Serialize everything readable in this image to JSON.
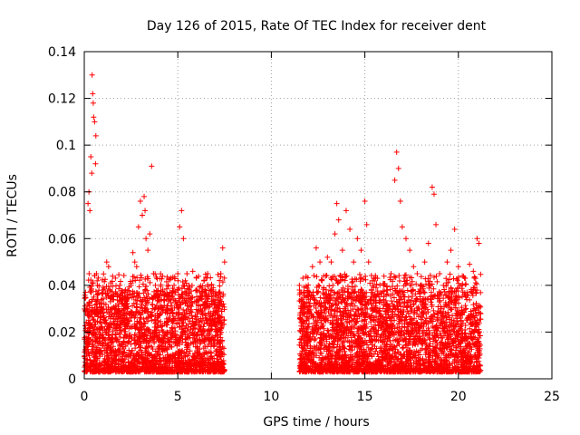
{
  "chart_data": {
    "type": "scatter",
    "title": "Day 126 of 2015, Rate Of TEC Index for receiver dent",
    "xlabel": "GPS time / hours",
    "ylabel": "ROTI / TECUs",
    "xlim": [
      0,
      25
    ],
    "ylim": [
      0,
      0.14
    ],
    "x_ticks": [
      0,
      5,
      10,
      15,
      20,
      25
    ],
    "x_tick_labels": [
      "0",
      "5",
      "10",
      "15",
      "20",
      "25"
    ],
    "y_ticks": [
      0,
      0.02,
      0.04,
      0.06,
      0.08,
      0.1,
      0.12,
      0.14
    ],
    "y_tick_labels": [
      "0",
      "0.02",
      "0.04",
      "0.06",
      "0.08",
      "0.1",
      "0.12",
      "0.14"
    ],
    "grid": true,
    "legend": "none",
    "marker": "plus",
    "color": "#ff0000",
    "series": [
      {
        "name": "",
        "points": [
          [
            0.05,
            0.012
          ],
          [
            0.1,
            0.018
          ],
          [
            0.15,
            0.008
          ],
          [
            0.2,
            0.075
          ],
          [
            0.25,
            0.08
          ],
          [
            0.3,
            0.072
          ],
          [
            0.35,
            0.095
          ],
          [
            0.4,
            0.088
          ],
          [
            0.42,
            0.13
          ],
          [
            0.45,
            0.122
          ],
          [
            0.48,
            0.118
          ],
          [
            0.5,
            0.112
          ],
          [
            0.55,
            0.11
          ],
          [
            0.6,
            0.092
          ],
          [
            0.62,
            0.104
          ],
          [
            0.65,
            0.045
          ],
          [
            0.7,
            0.04
          ],
          [
            0.8,
            0.032
          ],
          [
            0.9,
            0.028
          ],
          [
            1.0,
            0.038
          ],
          [
            1.1,
            0.025
          ],
          [
            1.2,
            0.05
          ],
          [
            1.3,
            0.048
          ],
          [
            1.4,
            0.035
          ],
          [
            1.5,
            0.03
          ],
          [
            1.6,
            0.022
          ],
          [
            1.7,
            0.036
          ],
          [
            1.8,
            0.028
          ],
          [
            1.9,
            0.04
          ],
          [
            2.0,
            0.032
          ],
          [
            2.1,
            0.025
          ],
          [
            2.2,
            0.034
          ],
          [
            2.3,
            0.03
          ],
          [
            2.4,
            0.028
          ],
          [
            2.5,
            0.04
          ],
          [
            2.6,
            0.054
          ],
          [
            2.7,
            0.05
          ],
          [
            2.8,
            0.048
          ],
          [
            2.9,
            0.065
          ],
          [
            3.0,
            0.076
          ],
          [
            3.1,
            0.07
          ],
          [
            3.2,
            0.078
          ],
          [
            3.25,
            0.072
          ],
          [
            3.3,
            0.06
          ],
          [
            3.4,
            0.055
          ],
          [
            3.5,
            0.062
          ],
          [
            3.6,
            0.091
          ],
          [
            3.7,
            0.045
          ],
          [
            3.8,
            0.04
          ],
          [
            3.9,
            0.035
          ],
          [
            4.0,
            0.03
          ],
          [
            4.2,
            0.038
          ],
          [
            4.4,
            0.034
          ],
          [
            4.6,
            0.03
          ],
          [
            4.8,
            0.04
          ],
          [
            5.0,
            0.045
          ],
          [
            5.1,
            0.065
          ],
          [
            5.2,
            0.072
          ],
          [
            5.3,
            0.06
          ],
          [
            5.4,
            0.042
          ],
          [
            5.6,
            0.04
          ],
          [
            5.8,
            0.046
          ],
          [
            6.0,
            0.038
          ],
          [
            6.2,
            0.035
          ],
          [
            6.4,
            0.032
          ],
          [
            6.6,
            0.045
          ],
          [
            6.8,
            0.04
          ],
          [
            7.0,
            0.036
          ],
          [
            7.2,
            0.03
          ],
          [
            7.3,
            0.045
          ],
          [
            7.4,
            0.056
          ],
          [
            7.5,
            0.05
          ],
          [
            11.5,
            0.04
          ],
          [
            11.6,
            0.03
          ],
          [
            11.8,
            0.028
          ],
          [
            12.0,
            0.034
          ],
          [
            12.2,
            0.048
          ],
          [
            12.4,
            0.056
          ],
          [
            12.6,
            0.05
          ],
          [
            12.8,
            0.044
          ],
          [
            13.0,
            0.052
          ],
          [
            13.2,
            0.05
          ],
          [
            13.4,
            0.062
          ],
          [
            13.5,
            0.075
          ],
          [
            13.6,
            0.068
          ],
          [
            13.8,
            0.055
          ],
          [
            14.0,
            0.072
          ],
          [
            14.2,
            0.064
          ],
          [
            14.4,
            0.05
          ],
          [
            14.6,
            0.06
          ],
          [
            14.8,
            0.055
          ],
          [
            15.0,
            0.076
          ],
          [
            15.1,
            0.066
          ],
          [
            15.2,
            0.05
          ],
          [
            15.4,
            0.042
          ],
          [
            15.6,
            0.035
          ],
          [
            15.8,
            0.03
          ],
          [
            16.0,
            0.04
          ],
          [
            16.2,
            0.038
          ],
          [
            16.4,
            0.045
          ],
          [
            16.6,
            0.085
          ],
          [
            16.7,
            0.097
          ],
          [
            16.8,
            0.09
          ],
          [
            16.9,
            0.076
          ],
          [
            17.0,
            0.065
          ],
          [
            17.2,
            0.06
          ],
          [
            17.4,
            0.055
          ],
          [
            17.6,
            0.048
          ],
          [
            17.8,
            0.045
          ],
          [
            18.0,
            0.04
          ],
          [
            18.2,
            0.05
          ],
          [
            18.4,
            0.058
          ],
          [
            18.6,
            0.082
          ],
          [
            18.7,
            0.079
          ],
          [
            18.8,
            0.066
          ],
          [
            19.0,
            0.045
          ],
          [
            19.2,
            0.04
          ],
          [
            19.4,
            0.05
          ],
          [
            19.6,
            0.055
          ],
          [
            19.8,
            0.064
          ],
          [
            20.0,
            0.048
          ],
          [
            20.2,
            0.04
          ],
          [
            20.4,
            0.035
          ],
          [
            20.6,
            0.049
          ],
          [
            20.8,
            0.046
          ],
          [
            21.0,
            0.06
          ],
          [
            21.1,
            0.058
          ]
        ],
        "band_segments": [
          [
            0.0,
            7.5
          ],
          [
            11.5,
            21.2
          ]
        ],
        "band_typical_max": 0.025
      }
    ]
  }
}
